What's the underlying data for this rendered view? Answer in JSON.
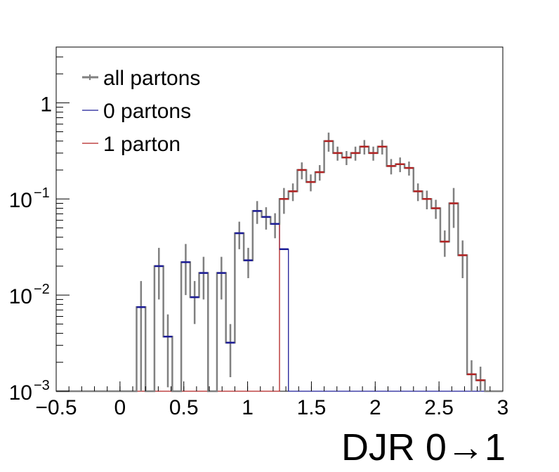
{
  "chart_data": {
    "type": "line",
    "title": "",
    "xlabel": "DJR 0→1",
    "ylabel": "",
    "xlim": [
      -0.5,
      3.0
    ],
    "ylim": [
      0.001,
      3.8
    ],
    "y_scale": "log",
    "grid": false,
    "legend_position": "top-left",
    "x_tick_labels": [
      "−0.5",
      "0",
      "0.5",
      "1",
      "1.5",
      "2",
      "2.5",
      "3"
    ],
    "x_tick_values": [
      -0.5,
      0,
      0.5,
      1,
      1.5,
      2,
      2.5,
      3
    ],
    "y_tick_labels": [
      {
        "base": "10",
        "exp": "−3",
        "value": 0.001
      },
      {
        "base": "10",
        "exp": "−2",
        "value": 0.01
      },
      {
        "base": "10",
        "exp": "−1",
        "value": 0.1
      },
      {
        "base": "1",
        "exp": "",
        "value": 1
      }
    ],
    "bin_edges_start": -0.5,
    "bin_width": 0.07,
    "series": [
      {
        "name": "all partons",
        "color": "#808080",
        "values": [
          0.001,
          0.001,
          0.001,
          0.001,
          0.001,
          0.001,
          0.001,
          0.001,
          0.001,
          0.0075,
          0.001,
          0.02,
          0.0037,
          0.001,
          0.022,
          0.0095,
          0.017,
          0.001,
          0.017,
          0.0032,
          0.044,
          0.023,
          0.075,
          0.065,
          0.055,
          0.1,
          0.12,
          0.2,
          0.15,
          0.19,
          0.4,
          0.3,
          0.27,
          0.3,
          0.35,
          0.3,
          0.35,
          0.22,
          0.23,
          0.21,
          0.12,
          0.1,
          0.08,
          0.036,
          0.09,
          0.026,
          0.0015,
          0.0013,
          0.001,
          0.001
        ],
        "errors": [
          0,
          0,
          0,
          0,
          0,
          0,
          0,
          0,
          0,
          0.0065,
          0,
          0.011,
          0.0026,
          0,
          0.012,
          0.0045,
          0.008,
          0,
          0.008,
          0.0018,
          0.014,
          0.008,
          0.02,
          0.017,
          0.016,
          0.03,
          0.025,
          0.04,
          0.03,
          0.035,
          0.09,
          0.05,
          0.045,
          0.05,
          0.06,
          0.05,
          0.06,
          0.04,
          0.04,
          0.035,
          0.025,
          0.022,
          0.018,
          0.011,
          0.04,
          0.011,
          0.0006,
          0.0005,
          0,
          0
        ]
      },
      {
        "name": "0 partons",
        "color": "#1c1c96",
        "values": [
          0.001,
          0.001,
          0.001,
          0.001,
          0.001,
          0.001,
          0.001,
          0.001,
          0.001,
          0.0075,
          0.001,
          0.02,
          0.0037,
          0.001,
          0.022,
          0.0095,
          0.017,
          0.001,
          0.017,
          0.0032,
          0.044,
          0.023,
          0.075,
          0.065,
          0.055,
          0.03,
          0.001,
          0.001,
          0.001,
          0.001,
          0.001,
          0.001,
          0.001,
          0.001,
          0.001,
          0.001,
          0.001,
          0.001,
          0.001,
          0.001,
          0.001,
          0.001,
          0.001,
          0.001,
          0.001,
          0.001,
          0.001,
          0.001,
          0.001,
          0.001
        ]
      },
      {
        "name": "1 parton",
        "color": "#b22222",
        "values": [
          0.001,
          0.001,
          0.001,
          0.001,
          0.001,
          0.001,
          0.001,
          0.001,
          0.001,
          0.001,
          0.001,
          0.001,
          0.001,
          0.001,
          0.001,
          0.001,
          0.001,
          0.001,
          0.001,
          0.001,
          0.001,
          0.001,
          0.001,
          0.001,
          0.001,
          0.1,
          0.12,
          0.2,
          0.15,
          0.19,
          0.4,
          0.3,
          0.27,
          0.3,
          0.35,
          0.3,
          0.35,
          0.22,
          0.23,
          0.21,
          0.12,
          0.1,
          0.08,
          0.036,
          0.09,
          0.026,
          0.0015,
          0.0013,
          0.001,
          0.001
        ]
      }
    ]
  }
}
